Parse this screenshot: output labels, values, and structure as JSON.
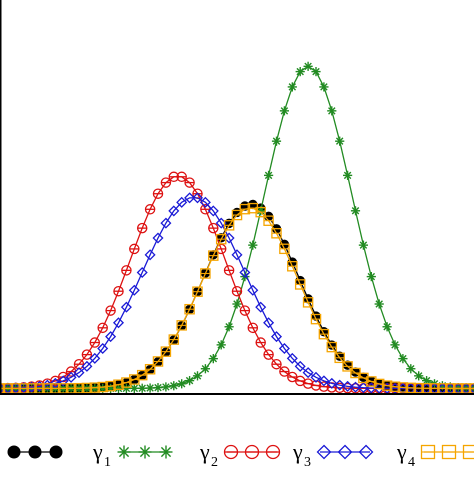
{
  "chart_data": {
    "type": "line",
    "title": "",
    "xlabel": "",
    "ylabel": "",
    "axes": {
      "tick_labels": "none",
      "grid": false,
      "frame": true
    },
    "x_domain": [
      -3,
      3
    ],
    "y_domain": [
      0,
      1
    ],
    "legend": {
      "placement": "bottom",
      "entries": [
        {
          "label": "",
          "color": "#000000",
          "marker": "circle-filled"
        },
        {
          "label": "γ1",
          "base": "γ",
          "sub": "1",
          "color": "#228b22",
          "marker": "asterisk"
        },
        {
          "label": "γ2",
          "base": "γ",
          "sub": "2",
          "color": "#dd1111",
          "marker": "circle-open-dash"
        },
        {
          "label": "γ3",
          "base": "γ",
          "sub": "3",
          "color": "#1a1ad6",
          "marker": "diamond-open"
        },
        {
          "label": "γ4",
          "base": "γ",
          "sub": "4",
          "color": "#f5a500",
          "marker": "square-open"
        }
      ]
    },
    "series": [
      {
        "color": "#000000",
        "marker": "circle-filled",
        "center": 0.18,
        "sigma": 0.6,
        "peak": 0.52,
        "baseline": 0.01
      },
      {
        "color": "#228b22",
        "marker": "asterisk",
        "center": 0.9,
        "sigma": 0.55,
        "peak": 0.91,
        "baseline": 0.01
      },
      {
        "color": "#dd1111",
        "marker": "circle-open-dash",
        "center": -0.75,
        "sigma": 0.6,
        "peak": 0.6,
        "baseline": 0.01
      },
      {
        "color": "#1a1ad6",
        "marker": "diamond-open",
        "center": -0.55,
        "sigma": 0.65,
        "peak": 0.54,
        "baseline": 0.01
      },
      {
        "color": "#f5a500",
        "marker": "square-open",
        "center": 0.17,
        "sigma": 0.6,
        "peak": 0.51,
        "baseline": 0.01
      }
    ]
  }
}
